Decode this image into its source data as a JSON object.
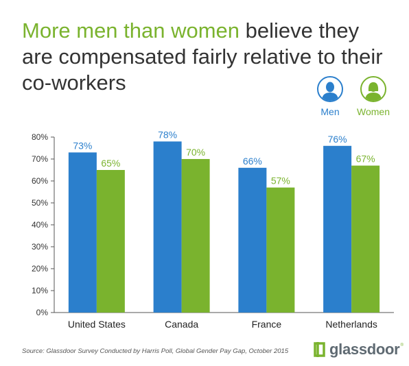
{
  "title": {
    "highlight": "More men than women",
    "rest": " believe they are compensated fairly relative to their co-workers"
  },
  "legend": [
    {
      "label": "Men",
      "color": "#2b7fcc",
      "icon": "man-silhouette-icon"
    },
    {
      "label": "Women",
      "color": "#7ab32e",
      "icon": "woman-silhouette-icon"
    }
  ],
  "source": "Source: Glassdoor Survey Conducted by Harris Poll, Global Gender Pay Gap, October 2015",
  "logo": {
    "text": "glassdoor",
    "mark": "®"
  },
  "chart_data": {
    "type": "bar",
    "categories": [
      "United States",
      "Canada",
      "France",
      "Netherlands"
    ],
    "series": [
      {
        "name": "Men",
        "values": [
          73,
          78,
          66,
          76
        ],
        "labels": [
          "73%",
          "78%",
          "66%",
          "76%"
        ],
        "color": "#2b7fcc"
      },
      {
        "name": "Women",
        "values": [
          65,
          70,
          57,
          67
        ],
        "labels": [
          "65%",
          "70%",
          "57%",
          "67%"
        ],
        "color": "#7ab32e"
      }
    ],
    "ylim": [
      0,
      80
    ],
    "yticks": [
      0,
      10,
      20,
      30,
      40,
      50,
      60,
      70,
      80
    ],
    "ytick_labels": [
      "0%",
      "10%",
      "20%",
      "30%",
      "40%",
      "50%",
      "60%",
      "70%",
      "80%"
    ],
    "grid": false,
    "xlabel": "",
    "ylabel": ""
  }
}
